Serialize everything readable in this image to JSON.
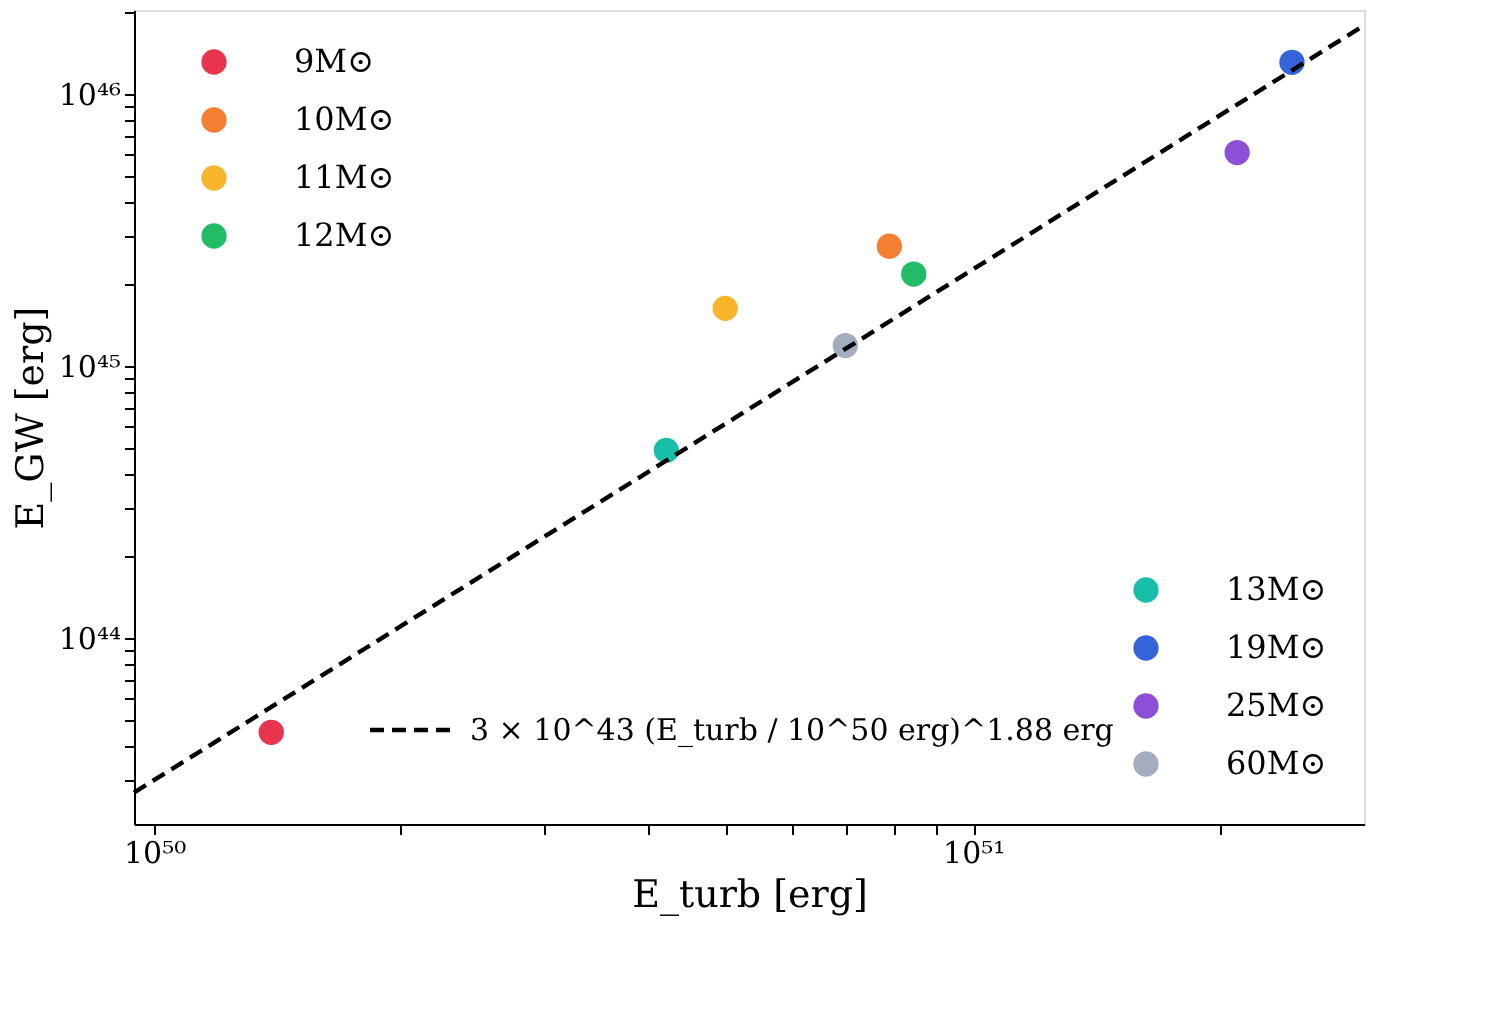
{
  "chart_data": {
    "type": "scatter",
    "xlabel": "E_turb [erg]",
    "ylabel": "E_GW [erg]",
    "log": "xy",
    "grid": false,
    "legend": "top left",
    "marker": "circle",
    "xlim": [
      9.45e+49,
      3e+51
    ],
    "ylim": [
      2.07e+43,
      2.04e+46
    ],
    "xticks": [
      {
        "value": 1e+50,
        "label": "10⁵⁰"
      },
      {
        "value": 2e+50,
        "label": null
      },
      {
        "value": 3e+50,
        "label": null
      },
      {
        "value": 4e+50,
        "label": null
      },
      {
        "value": 5e+50,
        "label": null
      },
      {
        "value": 6e+50,
        "label": null
      },
      {
        "value": 7e+50,
        "label": null
      },
      {
        "value": 8e+50,
        "label": null
      },
      {
        "value": 9e+50,
        "label": null
      },
      {
        "value": 1e+51,
        "label": "10⁵¹"
      },
      {
        "value": 2e+51,
        "label": null
      }
    ],
    "yticks": [
      {
        "value": 3e+43,
        "label": null
      },
      {
        "value": 4e+43,
        "label": null
      },
      {
        "value": 5e+43,
        "label": null
      },
      {
        "value": 6e+43,
        "label": null
      },
      {
        "value": 7e+43,
        "label": null
      },
      {
        "value": 8e+43,
        "label": null
      },
      {
        "value": 9e+43,
        "label": null
      },
      {
        "value": 1e+44,
        "label": "10⁴⁴"
      },
      {
        "value": 2e+44,
        "label": null
      },
      {
        "value": 3e+44,
        "label": null
      },
      {
        "value": 4e+44,
        "label": null
      },
      {
        "value": 5e+44,
        "label": null
      },
      {
        "value": 6e+44,
        "label": null
      },
      {
        "value": 7e+44,
        "label": null
      },
      {
        "value": 8e+44,
        "label": null
      },
      {
        "value": 9e+44,
        "label": null
      },
      {
        "value": 1e+45,
        "label": "10⁴⁵"
      },
      {
        "value": 2e+45,
        "label": null
      },
      {
        "value": 3e+45,
        "label": null
      },
      {
        "value": 4e+45,
        "label": null
      },
      {
        "value": 5e+45,
        "label": null
      },
      {
        "value": 6e+45,
        "label": null
      },
      {
        "value": 7e+45,
        "label": null
      },
      {
        "value": 8e+45,
        "label": null
      },
      {
        "value": 9e+45,
        "label": null
      },
      {
        "value": 1e+46,
        "label": "10⁴⁶"
      },
      {
        "value": 2e+46,
        "label": null
      }
    ],
    "series": [
      {
        "name": "9M⊙",
        "color": "#e8344e",
        "x": [
          1.39e+50
        ],
        "values": [
          4.5e+43
        ]
      },
      {
        "name": "10M⊙",
        "color": "#f47f30",
        "x": [
          7.9e+50
        ],
        "values": [
          2.76e+45
        ]
      },
      {
        "name": "11M⊙",
        "color": "#f7b52c",
        "x": [
          4.98e+50
        ],
        "values": [
          1.63e+45
        ]
      },
      {
        "name": "12M⊙",
        "color": "#22bb66",
        "x": [
          8.46e+50
        ],
        "values": [
          2.18e+45
        ]
      },
      {
        "name": "13M⊙",
        "color": "#17bfa8",
        "x": [
          4.22e+50
        ],
        "values": [
          4.9e+44
        ]
      },
      {
        "name": "19M⊙",
        "color": "#3563d9",
        "x": [
          2.45e+51
        ],
        "values": [
          1.31e+46
        ]
      },
      {
        "name": "25M⊙",
        "color": "#8c4fd6",
        "x": [
          2.1e+51
        ],
        "values": [
          6.1e+45
        ]
      },
      {
        "name": "60M⊙",
        "color": "#a4adbf",
        "x": [
          6.98e+50
        ],
        "values": [
          1.19e+45
        ]
      },
      {
        "name": "3 × 10^43 (E_turb / 10^50 erg)^1.88 erg",
        "type": "line",
        "color": "#000000",
        "line_style": "dashed",
        "marker": "none",
        "x": [
          9.45e+49,
          3e+51
        ],
        "values": [
          2.7e+43,
          1.79e+46
        ]
      }
    ]
  }
}
